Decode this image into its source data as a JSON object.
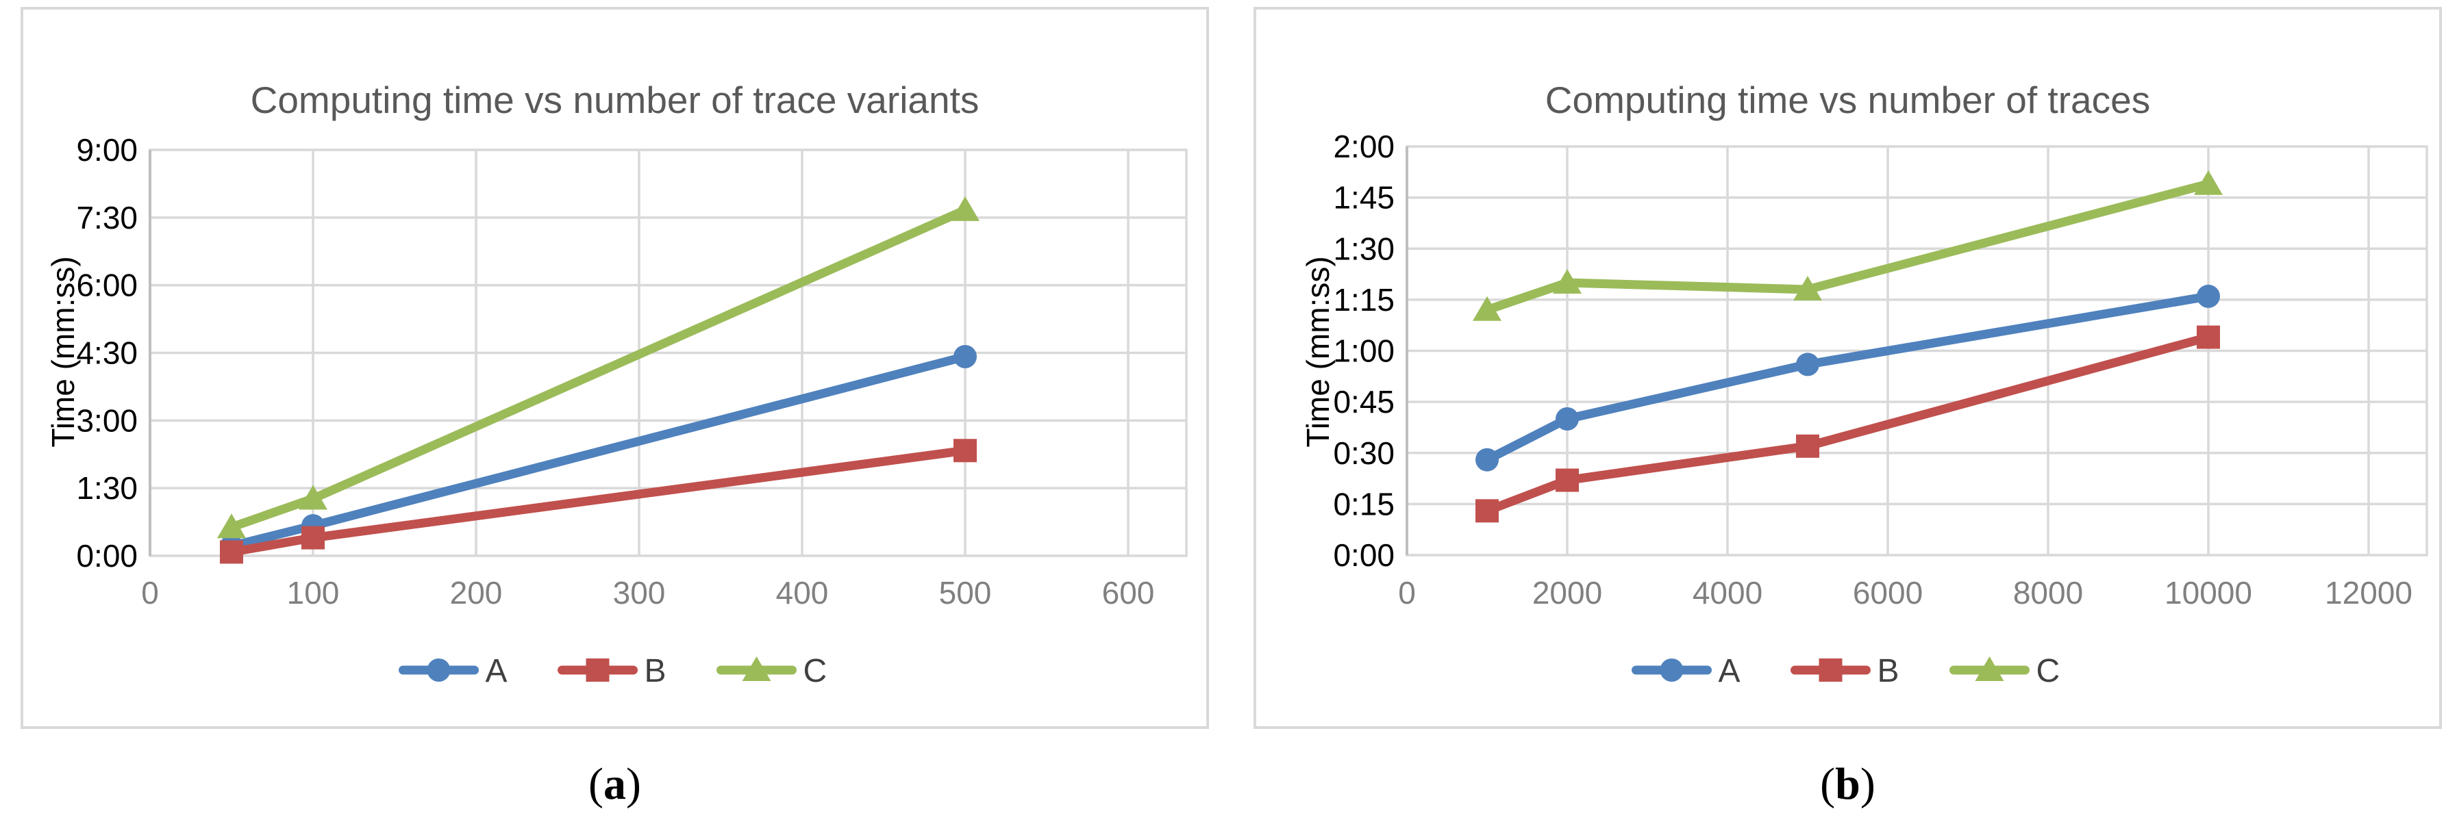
{
  "figure": {
    "captions": [
      {
        "open": "(",
        "letter": "a",
        "close": ")"
      },
      {
        "open": "(",
        "letter": "b",
        "close": ")"
      }
    ]
  },
  "colors": {
    "series_a_blue": "#4F81BD",
    "series_b_red": "#C0504D",
    "series_c_green": "#9BBB59",
    "gridline": "#D9D9D9",
    "axis_line": "#BFBFBF",
    "title_text": "#595959",
    "x_tick_text": "#808080",
    "y_tick_text": "#000000",
    "legend_text": "#404040",
    "panel_border": "#D9D9D9"
  },
  "chart_data": [
    {
      "type": "line",
      "title": "Computing time vs number of trace variants",
      "xlabel": "",
      "ylabel": "Time (mm:ss)",
      "grid": true,
      "legend_position": "bottom",
      "x_ticks": [
        0,
        100,
        200,
        300,
        400,
        500,
        600
      ],
      "xlim": [
        0,
        600
      ],
      "y_ticks": [
        "0:00",
        "1:30",
        "3:00",
        "4:30",
        "6:00",
        "7:30",
        "9:00"
      ],
      "y_tick_step_seconds": 90,
      "ylim_seconds": [
        0,
        540
      ],
      "x": [
        50,
        100,
        500
      ],
      "series": [
        {
          "name": "A",
          "marker": "circle",
          "color": "#4F81BD",
          "values_mmss": [
            "0:13",
            "0:40",
            "4:25"
          ],
          "values_seconds": [
            13,
            40,
            265
          ]
        },
        {
          "name": "B",
          "marker": "square",
          "color": "#C0504D",
          "values_mmss": [
            "0:05",
            "0:24",
            "2:20"
          ],
          "values_seconds": [
            5,
            24,
            140
          ]
        },
        {
          "name": "C",
          "marker": "triangle",
          "color": "#9BBB59",
          "values_mmss": [
            "0:38",
            "1:16",
            "7:40"
          ],
          "values_seconds": [
            38,
            76,
            460
          ]
        }
      ]
    },
    {
      "type": "line",
      "title": "Computing time vs number of traces",
      "xlabel": "",
      "ylabel": "Time (mm:ss)",
      "grid": true,
      "legend_position": "bottom",
      "x_ticks": [
        0,
        2000,
        4000,
        6000,
        8000,
        10000,
        12000
      ],
      "xlim": [
        0,
        12000
      ],
      "y_ticks": [
        "0:00",
        "0:15",
        "0:30",
        "0:45",
        "1:00",
        "1:15",
        "1:30",
        "1:45",
        "2:00"
      ],
      "y_tick_step_seconds": 15,
      "ylim_seconds": [
        0,
        120
      ],
      "x": [
        1000,
        2000,
        5000,
        10000
      ],
      "series": [
        {
          "name": "A",
          "marker": "circle",
          "color": "#4F81BD",
          "values_mmss": [
            "0:28",
            "0:40",
            "0:56",
            "1:16"
          ],
          "values_seconds": [
            28,
            40,
            56,
            76
          ]
        },
        {
          "name": "B",
          "marker": "square",
          "color": "#C0504D",
          "values_mmss": [
            "0:13",
            "0:22",
            "0:32",
            "1:04"
          ],
          "values_seconds": [
            13,
            22,
            32,
            64
          ]
        },
        {
          "name": "C",
          "marker": "triangle",
          "color": "#9BBB59",
          "values_mmss": [
            "1:12",
            "1:20",
            "1:18",
            "1:49"
          ],
          "values_seconds": [
            72,
            80,
            78,
            109
          ]
        }
      ]
    }
  ]
}
